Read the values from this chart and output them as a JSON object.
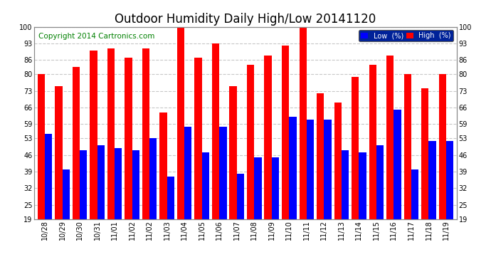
{
  "title": "Outdoor Humidity Daily High/Low 20141120",
  "copyright": "Copyright 2014 Cartronics.com",
  "x_labels": [
    "10/28",
    "10/29",
    "10/30",
    "10/31",
    "11/01",
    "11/02",
    "11/02",
    "11/03",
    "11/04",
    "11/05",
    "11/06",
    "11/07",
    "11/08",
    "11/09",
    "11/10",
    "11/11",
    "11/12",
    "11/13",
    "11/14",
    "11/15",
    "11/16",
    "11/17",
    "11/18",
    "11/19"
  ],
  "high": [
    80,
    75,
    83,
    90,
    91,
    87,
    91,
    64,
    100,
    87,
    93,
    75,
    84,
    88,
    92,
    100,
    72,
    68,
    79,
    84,
    88,
    80,
    74,
    80
  ],
  "low": [
    55,
    40,
    48,
    50,
    49,
    48,
    53,
    37,
    58,
    47,
    58,
    38,
    45,
    45,
    62,
    61,
    61,
    48,
    47,
    50,
    65,
    40,
    52,
    52
  ],
  "bar_color_high": "#ff0000",
  "bar_color_low": "#0000ff",
  "bg_color": "#ffffff",
  "grid_color": "#c8c8c8",
  "ylim_min": 19,
  "ylim_max": 100,
  "yticks": [
    19,
    25,
    32,
    39,
    46,
    53,
    59,
    66,
    73,
    80,
    86,
    93,
    100
  ],
  "title_fontsize": 12,
  "copyright_fontsize": 7.5,
  "legend_low_label": "Low  (%)",
  "legend_high_label": "High  (%)"
}
